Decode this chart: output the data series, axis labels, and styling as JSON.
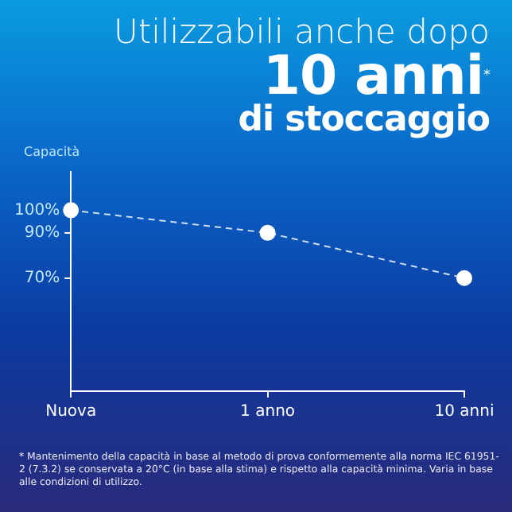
{
  "chart_data": {
    "type": "line",
    "title": "Utilizzabili anche dopo",
    "subtitle": "10 anni$^{*}$\ndi stoccaggio",
    "ylabel": "Capacità",
    "categories": [
      "Nuova",
      "1 anno",
      "10 anni"
    ],
    "series": [
      {
        "color": "#ffffff",
        "values": [
          100,
          90,
          70
        ]
      }
    ],
    "ylim": [
      20,
      117
    ],
    "yticks": [
      {
        "value": 100,
        "label": "100%"
      },
      {
        "value": 90,
        "label": "90%"
      },
      {
        "value": 70,
        "label": "70%"
      }
    ],
    "grid": false,
    "legend": false,
    "marker": "circle",
    "line_style": "dashed",
    "annotations": [
      "* Mantenimento della capacità in base al metodo di prova conformemente alla norma IEC 61951-2 (7.3.2) se conservata a 20°C (in base alla stima) e rispetto alla capacità minima. Varia in base alle condizioni di utilizzo."
    ]
  }
}
